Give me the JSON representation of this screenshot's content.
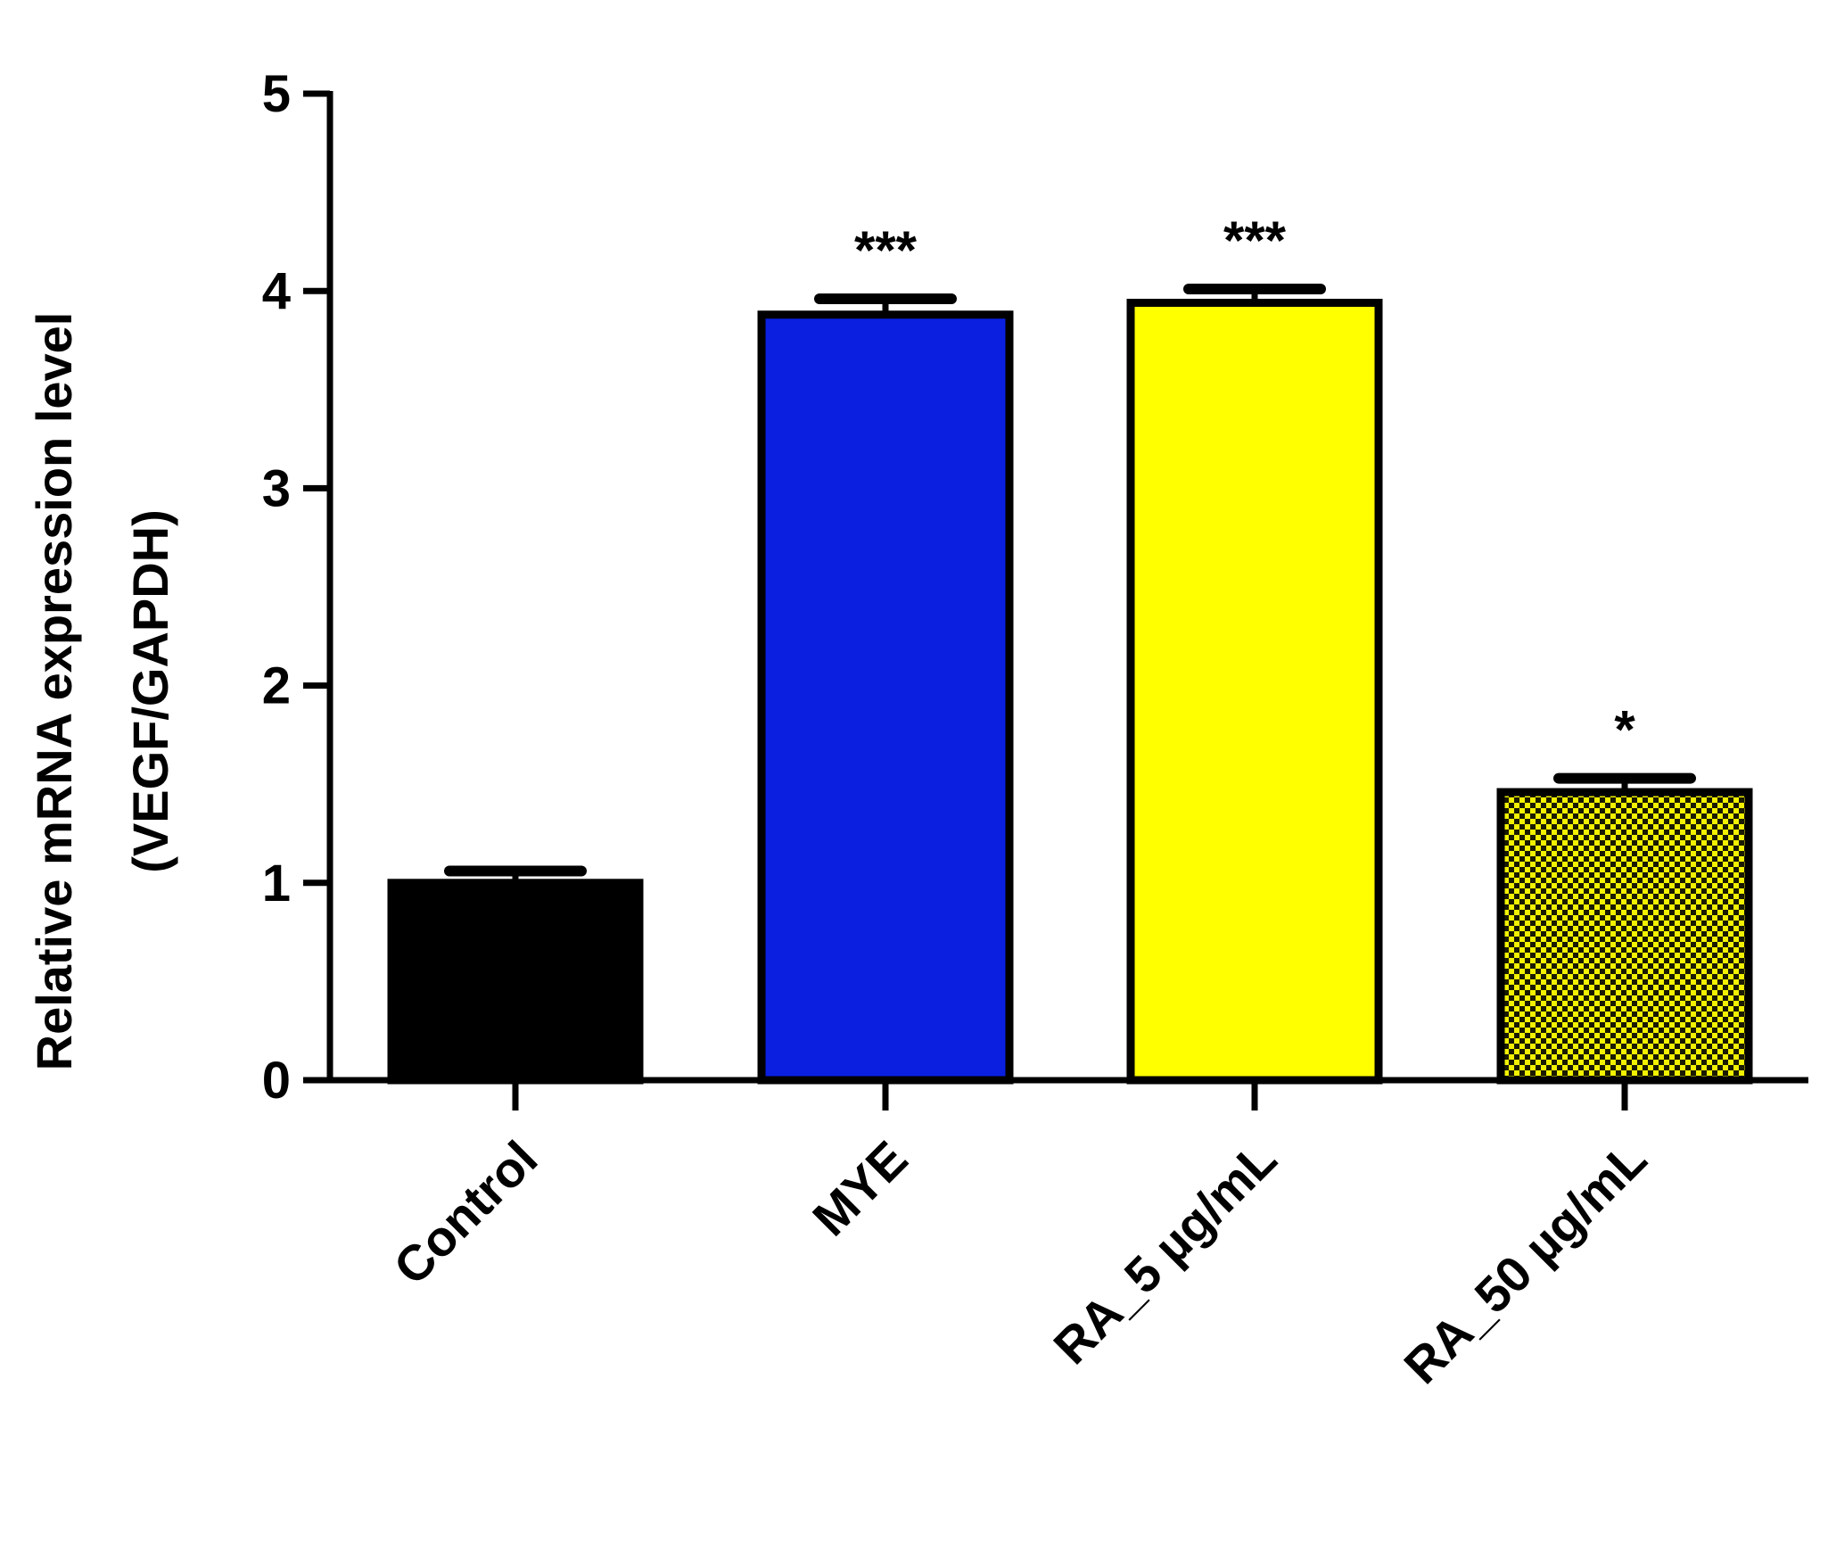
{
  "chart_data": {
    "type": "bar",
    "title": "",
    "xlabel": "",
    "ylabel_lines": [
      "Relative mRNA expression level",
      "(VEGF/GAPDH)"
    ],
    "ylim": [
      0,
      5
    ],
    "yticks": [
      "0",
      "1",
      "2",
      "3",
      "4",
      "5"
    ],
    "categories": [
      "Control",
      "MYE",
      "RA_5 µg/mL",
      "RA_50 µg/mL"
    ],
    "values": [
      1.0,
      3.88,
      3.94,
      1.46
    ],
    "errors": [
      0.06,
      0.08,
      0.07,
      0.07
    ],
    "annotations": [
      "",
      "***",
      "***",
      "*"
    ],
    "bar_styles": [
      {
        "fill": "#000000",
        "pattern": "solid"
      },
      {
        "fill": "#0a1fe0",
        "pattern": "solid"
      },
      {
        "fill": "#ffff00",
        "pattern": "solid"
      },
      {
        "fill": "#f2f200",
        "pattern": "checker",
        "pattern_color": "#1a1a00"
      }
    ],
    "grid": false,
    "legend": "none"
  }
}
